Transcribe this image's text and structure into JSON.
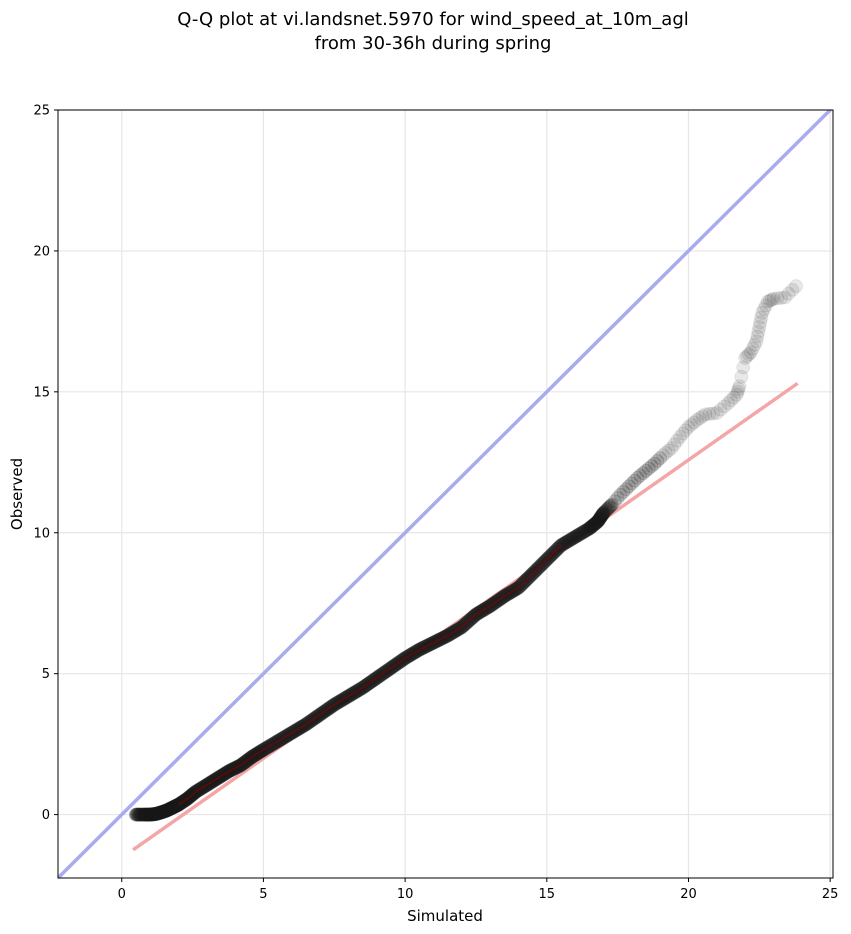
{
  "chart_data": {
    "type": "scatter",
    "title_lines": [
      "Q-Q plot at vi.landsnet.5970 for wind_speed_at_10m_agl",
      "from 30-36h during spring"
    ],
    "xlabel": "Simulated",
    "ylabel": "Observed",
    "xlim": [
      -2.25,
      25.1
    ],
    "ylim": [
      -2.25,
      25.0
    ],
    "xticks": [
      0,
      5,
      10,
      15,
      20,
      25
    ],
    "yticks": [
      0,
      5,
      10,
      15,
      20,
      25
    ],
    "xtick_labels": [
      "0",
      "5",
      "10",
      "15",
      "20",
      "25"
    ],
    "ytick_labels": [
      "0",
      "5",
      "10",
      "15",
      "20",
      "25"
    ],
    "grid": true,
    "colors": {
      "identity_line": "#aaaaee",
      "fit_line": "#f4a6a6",
      "points": "#1a1a1a",
      "dense_trace": "#8b0000",
      "grid": "#e6e6e6"
    },
    "series": [
      {
        "kind": "identity_line",
        "x": [
          -2.25,
          25.1
        ],
        "y": [
          -2.25,
          25.1
        ]
      },
      {
        "kind": "fit_line",
        "x": [
          0.4,
          23.85
        ],
        "y": [
          -1.25,
          15.3
        ]
      },
      {
        "kind": "quantile_points",
        "x": [
          0.5,
          0.8,
          1.0,
          1.2,
          1.4,
          1.6,
          1.8,
          2.0,
          2.3,
          2.6,
          3.0,
          3.4,
          3.8,
          4.2,
          4.6,
          5.0,
          5.5,
          6.0,
          6.5,
          7.0,
          7.5,
          8.0,
          8.5,
          9.0,
          9.5,
          10.0,
          10.5,
          11.0,
          11.5,
          12.0,
          12.5,
          13.0,
          13.5,
          14.0,
          14.5,
          15.0,
          15.5,
          16.0,
          16.5,
          16.8,
          17.0,
          17.3,
          17.6,
          17.9,
          18.2,
          18.5,
          18.8,
          19.1,
          19.4,
          19.7,
          20.0,
          20.3,
          20.6,
          21.0,
          21.4,
          21.7,
          21.8,
          22.0,
          22.2,
          22.4,
          22.5,
          22.6,
          22.8,
          23.0,
          23.4,
          23.8
        ],
        "y": [
          0.0,
          0.0,
          0.0,
          0.02,
          0.08,
          0.15,
          0.25,
          0.35,
          0.55,
          0.8,
          1.05,
          1.3,
          1.55,
          1.75,
          2.05,
          2.3,
          2.6,
          2.9,
          3.2,
          3.55,
          3.9,
          4.2,
          4.5,
          4.85,
          5.2,
          5.55,
          5.85,
          6.1,
          6.35,
          6.65,
          7.1,
          7.4,
          7.75,
          8.05,
          8.55,
          9.05,
          9.55,
          9.85,
          10.15,
          10.4,
          10.7,
          11.0,
          11.35,
          11.65,
          11.95,
          12.2,
          12.45,
          12.75,
          13.0,
          13.4,
          13.75,
          14.0,
          14.2,
          14.25,
          14.6,
          14.9,
          15.2,
          16.2,
          16.4,
          16.8,
          17.3,
          17.8,
          18.2,
          18.3,
          18.35,
          18.75
        ]
      }
    ]
  }
}
